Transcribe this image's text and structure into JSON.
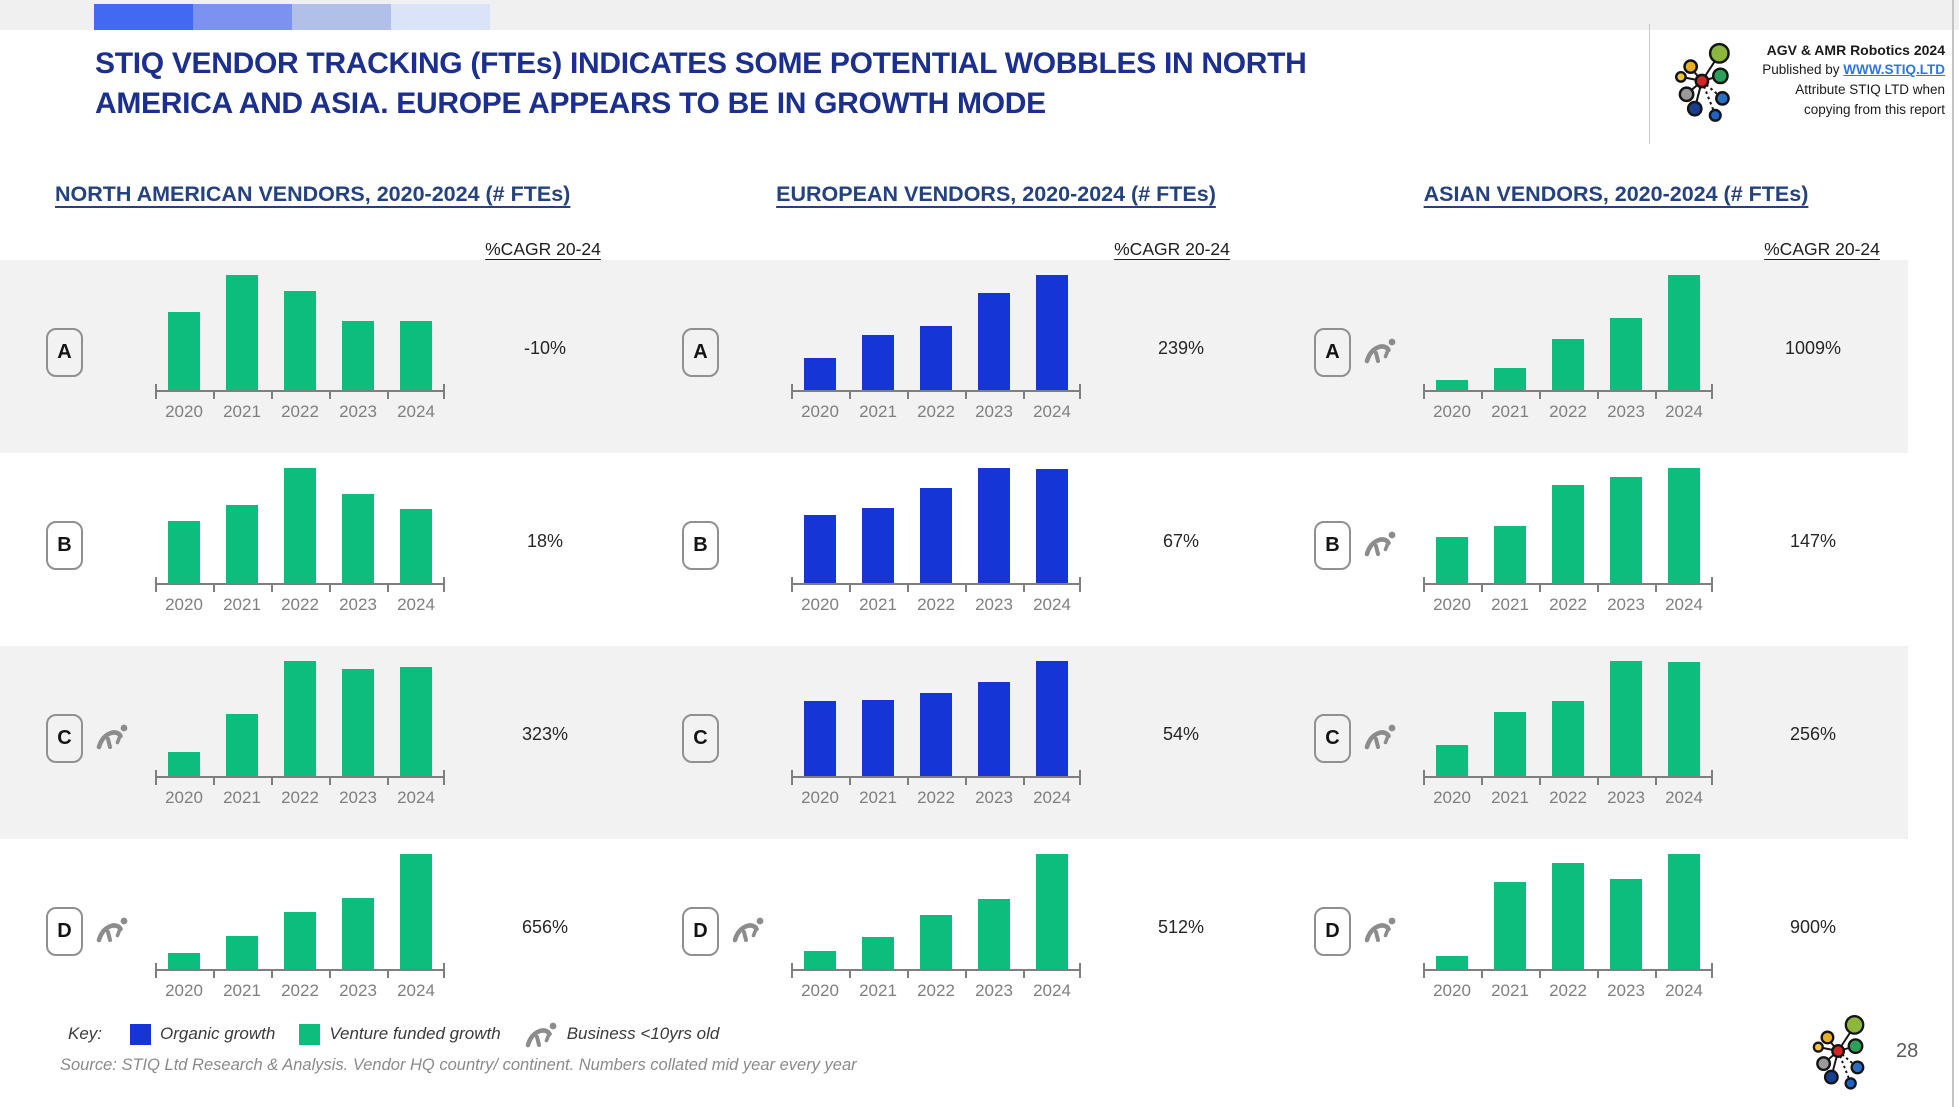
{
  "colors": {
    "organic": "#1535d6",
    "venture": "#0dbd7d",
    "row_band": "#f2f2f2",
    "title_navy": "#1b2f8e",
    "header_navy": "#24427f",
    "axis_gray": "#7f7f7f",
    "icon_gray": "#8c8c8c",
    "link_blue": "#2e75e0"
  },
  "top_strip": {
    "blocks": [
      "#4169f1",
      "#7b92f0",
      "#b2bfe9",
      "#dbe3f8"
    ]
  },
  "header": {
    "title_line1": "STIQ VENDOR TRACKING (FTEs) INDICATES SOME POTENTIAL WOBBLES IN NORTH",
    "title_line2": "AMERICA AND ASIA. EUROPE APPEARS TO BE IN GROWTH MODE"
  },
  "branding": {
    "line1": "AGV & AMR Robotics 2024",
    "line2_prefix": "Published by ",
    "line2_link": "WWW.STIQ.LTD",
    "line3": "Attribute STIQ LTD when",
    "line4": "copying from this report"
  },
  "columns": [
    {
      "title": "NORTH AMERICAN VENDORS, 2020-2024 (# FTEs)",
      "cagr_header": "%CAGR 20-24"
    },
    {
      "title": "EUROPEAN VENDORS, 2020-2024 (# FTEs)",
      "cagr_header": "%CAGR 20-24"
    },
    {
      "title": "ASIAN VENDORS, 2020-2024 (# FTEs)",
      "cagr_header": "%CAGR 20-24"
    }
  ],
  "years": [
    "2020",
    "2021",
    "2022",
    "2023",
    "2024"
  ],
  "row_meta": [
    {
      "label": "A",
      "shaded": true
    },
    {
      "label": "B",
      "shaded": false
    },
    {
      "label": "C",
      "shaded": true
    },
    {
      "label": "D",
      "shaded": false
    }
  ],
  "chart_data": [
    {
      "type": "bar",
      "region": "North America",
      "vendor": "A",
      "categories": [
        "2020",
        "2021",
        "2022",
        "2023",
        "2024"
      ],
      "values_relative_pct": [
        68,
        100,
        86,
        60,
        60
      ],
      "series": "Venture funded growth",
      "series_key": "venture",
      "young_business": false,
      "cagr_20_24": "-10%",
      "ylabel": "# FTEs (axis unlabeled)"
    },
    {
      "type": "bar",
      "region": "Europe",
      "vendor": "A",
      "categories": [
        "2020",
        "2021",
        "2022",
        "2023",
        "2024"
      ],
      "values_relative_pct": [
        28,
        48,
        56,
        84,
        100
      ],
      "series": "Organic growth",
      "series_key": "organic",
      "young_business": false,
      "cagr_20_24": "239%",
      "ylabel": "# FTEs (axis unlabeled)"
    },
    {
      "type": "bar",
      "region": "Asia",
      "vendor": "A",
      "categories": [
        "2020",
        "2021",
        "2022",
        "2023",
        "2024"
      ],
      "values_relative_pct": [
        9,
        19,
        44,
        63,
        100
      ],
      "series": "Venture funded growth",
      "series_key": "venture",
      "young_business": true,
      "cagr_20_24": "1009%",
      "ylabel": "# FTEs (axis unlabeled)"
    },
    {
      "type": "bar",
      "region": "North America",
      "vendor": "B",
      "categories": [
        "2020",
        "2021",
        "2022",
        "2023",
        "2024"
      ],
      "values_relative_pct": [
        54,
        68,
        100,
        77,
        64
      ],
      "series": "Venture funded growth",
      "series_key": "venture",
      "young_business": false,
      "cagr_20_24": "18%",
      "ylabel": "# FTEs (axis unlabeled)"
    },
    {
      "type": "bar",
      "region": "Europe",
      "vendor": "B",
      "categories": [
        "2020",
        "2021",
        "2022",
        "2023",
        "2024"
      ],
      "values_relative_pct": [
        59,
        65,
        83,
        100,
        99
      ],
      "series": "Organic growth",
      "series_key": "organic",
      "young_business": false,
      "cagr_20_24": "67%",
      "ylabel": "# FTEs (axis unlabeled)"
    },
    {
      "type": "bar",
      "region": "Asia",
      "vendor": "B",
      "categories": [
        "2020",
        "2021",
        "2022",
        "2023",
        "2024"
      ],
      "values_relative_pct": [
        40,
        50,
        85,
        92,
        100
      ],
      "series": "Venture funded growth",
      "series_key": "venture",
      "young_business": true,
      "cagr_20_24": "147%",
      "ylabel": "# FTEs (axis unlabeled)"
    },
    {
      "type": "bar",
      "region": "North America",
      "vendor": "C",
      "categories": [
        "2020",
        "2021",
        "2022",
        "2023",
        "2024"
      ],
      "values_relative_pct": [
        21,
        54,
        100,
        93,
        95
      ],
      "series": "Venture funded growth",
      "series_key": "venture",
      "young_business": true,
      "cagr_20_24": "323%",
      "ylabel": "# FTEs (axis unlabeled)"
    },
    {
      "type": "bar",
      "region": "Europe",
      "vendor": "C",
      "categories": [
        "2020",
        "2021",
        "2022",
        "2023",
        "2024"
      ],
      "values_relative_pct": [
        65,
        66,
        72,
        82,
        100
      ],
      "series": "Organic growth",
      "series_key": "organic",
      "young_business": false,
      "cagr_20_24": "54%",
      "ylabel": "# FTEs (axis unlabeled)"
    },
    {
      "type": "bar",
      "region": "Asia",
      "vendor": "C",
      "categories": [
        "2020",
        "2021",
        "2022",
        "2023",
        "2024"
      ],
      "values_relative_pct": [
        27,
        56,
        65,
        100,
        99
      ],
      "series": "Venture funded growth",
      "series_key": "venture",
      "young_business": true,
      "cagr_20_24": "256%",
      "ylabel": "# FTEs (axis unlabeled)"
    },
    {
      "type": "bar",
      "region": "North America",
      "vendor": "D",
      "categories": [
        "2020",
        "2021",
        "2022",
        "2023",
        "2024"
      ],
      "values_relative_pct": [
        14,
        29,
        50,
        62,
        100
      ],
      "series": "Venture funded growth",
      "series_key": "venture",
      "young_business": true,
      "cagr_20_24": "656%",
      "ylabel": "# FTEs (axis unlabeled)"
    },
    {
      "type": "bar",
      "region": "Europe",
      "vendor": "D",
      "categories": [
        "2020",
        "2021",
        "2022",
        "2023",
        "2024"
      ],
      "values_relative_pct": [
        16,
        28,
        47,
        61,
        100
      ],
      "series": "Venture funded growth",
      "series_key": "venture",
      "young_business": true,
      "cagr_20_24": "512%",
      "ylabel": "# FTEs (axis unlabeled)"
    },
    {
      "type": "bar",
      "region": "Asia",
      "vendor": "D",
      "categories": [
        "2020",
        "2021",
        "2022",
        "2023",
        "2024"
      ],
      "values_relative_pct": [
        11,
        76,
        92,
        78,
        100
      ],
      "series": "Venture funded growth",
      "series_key": "venture",
      "young_business": true,
      "cagr_20_24": "900%",
      "ylabel": "# FTEs (axis unlabeled)"
    }
  ],
  "legend": {
    "key_label": "Key:",
    "items": [
      {
        "swatch": "organic",
        "label": "Organic growth"
      },
      {
        "swatch": "venture",
        "label": "Venture funded growth"
      },
      {
        "icon": "runner",
        "label": "Business <10yrs old"
      }
    ]
  },
  "footer": {
    "source": "Source: STIQ Ltd Research & Analysis. Vendor HQ country/ continent. Numbers collated mid year every year",
    "page_number": "28"
  }
}
